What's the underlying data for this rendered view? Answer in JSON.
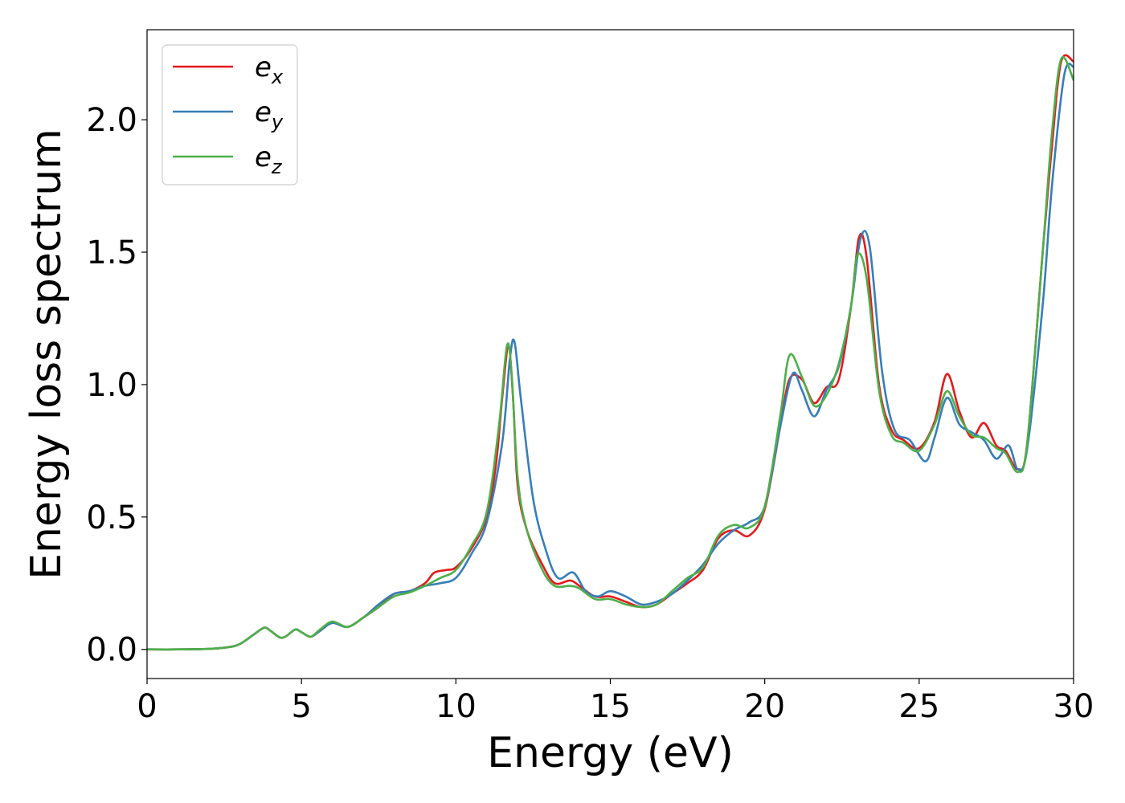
{
  "chart_data": {
    "type": "line",
    "xlabel": "Energy (eV)",
    "ylabel": "Energy loss spectrum",
    "xlim": [
      0,
      30
    ],
    "ylim": [
      -0.11,
      2.34
    ],
    "xticks": [
      "0",
      "5",
      "10",
      "15",
      "20",
      "25",
      "30"
    ],
    "yticks": [
      "0.0",
      "0.5",
      "1.0",
      "1.5",
      "2.0"
    ],
    "grid": false,
    "legend_position": "top-left",
    "series": [
      {
        "name": "e_x",
        "label_base": "e",
        "label_sub": "x",
        "color": "#e41a1c",
        "points": [
          [
            0,
            0.0
          ],
          [
            1,
            0.0
          ],
          [
            2,
            0.002
          ],
          [
            2.6,
            0.008
          ],
          [
            3.0,
            0.02
          ],
          [
            3.5,
            0.06
          ],
          [
            3.8,
            0.082
          ],
          [
            4.0,
            0.07
          ],
          [
            4.3,
            0.045
          ],
          [
            4.5,
            0.05
          ],
          [
            4.8,
            0.075
          ],
          [
            5.0,
            0.065
          ],
          [
            5.3,
            0.048
          ],
          [
            5.6,
            0.07
          ],
          [
            6.0,
            0.1
          ],
          [
            6.5,
            0.085
          ],
          [
            7.0,
            0.12
          ],
          [
            7.5,
            0.16
          ],
          [
            8.0,
            0.21
          ],
          [
            8.5,
            0.22
          ],
          [
            9.0,
            0.25
          ],
          [
            9.3,
            0.29
          ],
          [
            9.7,
            0.3
          ],
          [
            10.0,
            0.31
          ],
          [
            10.5,
            0.38
          ],
          [
            11.0,
            0.5
          ],
          [
            11.3,
            0.7
          ],
          [
            11.5,
            0.95
          ],
          [
            11.7,
            1.14
          ],
          [
            11.85,
            0.95
          ],
          [
            12.0,
            0.62
          ],
          [
            12.3,
            0.45
          ],
          [
            12.8,
            0.32
          ],
          [
            13.2,
            0.25
          ],
          [
            13.7,
            0.26
          ],
          [
            14.0,
            0.24
          ],
          [
            14.5,
            0.2
          ],
          [
            15.0,
            0.2
          ],
          [
            15.5,
            0.18
          ],
          [
            16.0,
            0.16
          ],
          [
            16.5,
            0.17
          ],
          [
            17.0,
            0.21
          ],
          [
            17.5,
            0.25
          ],
          [
            18.0,
            0.3
          ],
          [
            18.5,
            0.42
          ],
          [
            19.0,
            0.45
          ],
          [
            19.5,
            0.43
          ],
          [
            20.0,
            0.53
          ],
          [
            20.5,
            0.84
          ],
          [
            20.8,
            1.02
          ],
          [
            21.2,
            1.02
          ],
          [
            21.6,
            0.93
          ],
          [
            22.0,
            0.99
          ],
          [
            22.4,
            1.02
          ],
          [
            22.8,
            1.3
          ],
          [
            23.05,
            1.555
          ],
          [
            23.3,
            1.48
          ],
          [
            23.7,
            1.0
          ],
          [
            24.1,
            0.83
          ],
          [
            24.5,
            0.79
          ],
          [
            25.0,
            0.76
          ],
          [
            25.5,
            0.86
          ],
          [
            25.9,
            1.04
          ],
          [
            26.3,
            0.9
          ],
          [
            26.7,
            0.8
          ],
          [
            27.1,
            0.855
          ],
          [
            27.5,
            0.77
          ],
          [
            27.8,
            0.75
          ],
          [
            28.2,
            0.68
          ],
          [
            28.5,
            0.78
          ],
          [
            29.0,
            1.5
          ],
          [
            29.3,
            1.9
          ],
          [
            29.6,
            2.22
          ],
          [
            30.0,
            2.22
          ]
        ]
      },
      {
        "name": "e_y",
        "label_base": "e",
        "label_sub": "y",
        "color": "#377eb8",
        "points": [
          [
            0,
            0.0
          ],
          [
            1,
            0.0
          ],
          [
            2,
            0.002
          ],
          [
            2.6,
            0.008
          ],
          [
            3.0,
            0.02
          ],
          [
            3.5,
            0.06
          ],
          [
            3.8,
            0.082
          ],
          [
            4.0,
            0.07
          ],
          [
            4.3,
            0.045
          ],
          [
            4.5,
            0.05
          ],
          [
            4.8,
            0.075
          ],
          [
            5.0,
            0.065
          ],
          [
            5.3,
            0.048
          ],
          [
            5.6,
            0.07
          ],
          [
            6.0,
            0.1
          ],
          [
            6.5,
            0.085
          ],
          [
            7.0,
            0.12
          ],
          [
            7.5,
            0.17
          ],
          [
            8.0,
            0.21
          ],
          [
            8.5,
            0.22
          ],
          [
            9.0,
            0.24
          ],
          [
            9.5,
            0.25
          ],
          [
            10.0,
            0.27
          ],
          [
            10.5,
            0.36
          ],
          [
            11.0,
            0.48
          ],
          [
            11.5,
            0.78
          ],
          [
            11.75,
            1.1
          ],
          [
            11.9,
            1.16
          ],
          [
            12.1,
            0.95
          ],
          [
            12.5,
            0.57
          ],
          [
            12.9,
            0.38
          ],
          [
            13.3,
            0.27
          ],
          [
            13.8,
            0.29
          ],
          [
            14.2,
            0.22
          ],
          [
            14.6,
            0.2
          ],
          [
            15.0,
            0.22
          ],
          [
            15.5,
            0.2
          ],
          [
            16.0,
            0.17
          ],
          [
            16.5,
            0.18
          ],
          [
            17.0,
            0.21
          ],
          [
            17.5,
            0.26
          ],
          [
            18.0,
            0.32
          ],
          [
            18.5,
            0.4
          ],
          [
            19.0,
            0.45
          ],
          [
            19.5,
            0.48
          ],
          [
            20.0,
            0.54
          ],
          [
            20.5,
            0.84
          ],
          [
            20.9,
            1.04
          ],
          [
            21.2,
            0.98
          ],
          [
            21.6,
            0.88
          ],
          [
            22.0,
            0.98
          ],
          [
            22.4,
            1.07
          ],
          [
            22.8,
            1.3
          ],
          [
            23.1,
            1.55
          ],
          [
            23.4,
            1.52
          ],
          [
            23.8,
            1.05
          ],
          [
            24.2,
            0.83
          ],
          [
            24.7,
            0.79
          ],
          [
            25.2,
            0.71
          ],
          [
            25.5,
            0.8
          ],
          [
            25.9,
            0.95
          ],
          [
            26.3,
            0.85
          ],
          [
            26.7,
            0.82
          ],
          [
            27.1,
            0.79
          ],
          [
            27.5,
            0.72
          ],
          [
            27.9,
            0.77
          ],
          [
            28.2,
            0.68
          ],
          [
            28.5,
            0.76
          ],
          [
            29.0,
            1.3
          ],
          [
            29.3,
            1.75
          ],
          [
            29.7,
            2.17
          ],
          [
            30.0,
            2.2
          ]
        ]
      },
      {
        "name": "e_z",
        "label_base": "e",
        "label_sub": "z",
        "color": "#4daf4a",
        "points": [
          [
            0,
            0.0
          ],
          [
            1,
            0.0
          ],
          [
            2,
            0.002
          ],
          [
            2.6,
            0.008
          ],
          [
            3.0,
            0.02
          ],
          [
            3.5,
            0.06
          ],
          [
            3.8,
            0.082
          ],
          [
            4.0,
            0.07
          ],
          [
            4.3,
            0.045
          ],
          [
            4.5,
            0.05
          ],
          [
            4.8,
            0.075
          ],
          [
            5.0,
            0.065
          ],
          [
            5.3,
            0.048
          ],
          [
            5.6,
            0.075
          ],
          [
            6.0,
            0.105
          ],
          [
            6.5,
            0.085
          ],
          [
            7.0,
            0.12
          ],
          [
            7.5,
            0.16
          ],
          [
            8.0,
            0.2
          ],
          [
            8.5,
            0.215
          ],
          [
            9.0,
            0.24
          ],
          [
            9.5,
            0.27
          ],
          [
            10.0,
            0.3
          ],
          [
            10.5,
            0.39
          ],
          [
            11.0,
            0.52
          ],
          [
            11.4,
            0.85
          ],
          [
            11.65,
            1.145
          ],
          [
            11.8,
            1.05
          ],
          [
            12.0,
            0.65
          ],
          [
            12.3,
            0.45
          ],
          [
            12.8,
            0.3
          ],
          [
            13.2,
            0.24
          ],
          [
            13.7,
            0.24
          ],
          [
            14.0,
            0.23
          ],
          [
            14.5,
            0.19
          ],
          [
            15.0,
            0.19
          ],
          [
            15.5,
            0.17
          ],
          [
            16.0,
            0.16
          ],
          [
            16.5,
            0.17
          ],
          [
            17.0,
            0.22
          ],
          [
            17.5,
            0.27
          ],
          [
            18.0,
            0.31
          ],
          [
            18.5,
            0.43
          ],
          [
            19.0,
            0.47
          ],
          [
            19.5,
            0.46
          ],
          [
            20.0,
            0.54
          ],
          [
            20.5,
            0.88
          ],
          [
            20.8,
            1.11
          ],
          [
            21.2,
            1.03
          ],
          [
            21.6,
            0.92
          ],
          [
            22.0,
            0.96
          ],
          [
            22.4,
            1.08
          ],
          [
            22.8,
            1.3
          ],
          [
            23.0,
            1.49
          ],
          [
            23.3,
            1.4
          ],
          [
            23.7,
            0.98
          ],
          [
            24.1,
            0.81
          ],
          [
            24.5,
            0.78
          ],
          [
            25.0,
            0.75
          ],
          [
            25.5,
            0.85
          ],
          [
            25.9,
            0.975
          ],
          [
            26.3,
            0.88
          ],
          [
            26.7,
            0.81
          ],
          [
            27.1,
            0.8
          ],
          [
            27.5,
            0.76
          ],
          [
            27.8,
            0.74
          ],
          [
            28.2,
            0.67
          ],
          [
            28.5,
            0.78
          ],
          [
            29.0,
            1.5
          ],
          [
            29.3,
            1.95
          ],
          [
            29.6,
            2.23
          ],
          [
            30.0,
            2.15
          ]
        ]
      }
    ]
  }
}
